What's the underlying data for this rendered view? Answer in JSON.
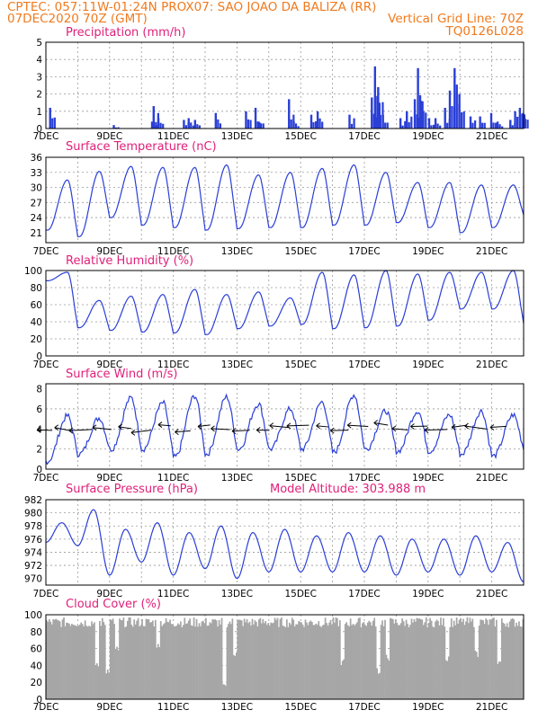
{
  "header": {
    "line1": "CPTEC:   057:11W-01:24N   PROX07: SAO JOAO DA BALIZA (RR)",
    "line2_left": "07DEC2020 70Z (GMT)",
    "line2_right": "Vertical Grid Line: 70Z",
    "code": "TQ0126L028"
  },
  "colors": {
    "header": "#f07a1e",
    "title": "#e0207a",
    "series": "#2a3fd6",
    "cloud": "#a6a6a6",
    "grid": "#9a9a9a"
  },
  "chart_data": [
    {
      "id": "precip",
      "type": "bar",
      "title": "Precipitation (mm/h)",
      "x_ticks": [
        "7DEC",
        "9DEC",
        "11DEC",
        "13DEC",
        "15DEC",
        "17DEC",
        "19DEC",
        "21DEC"
      ],
      "ylim": [
        0,
        5
      ],
      "yticks": [
        0,
        1,
        2,
        3,
        4,
        5
      ],
      "events": [
        {
          "day": 0.1,
          "value": 1.2
        },
        {
          "day": 2.1,
          "value": 0.2
        },
        {
          "day": 3.3,
          "value": 0.4
        },
        {
          "day": 3.35,
          "value": 1.3
        },
        {
          "day": 3.5,
          "value": 0.6
        },
        {
          "day": 4.3,
          "value": 0.5
        },
        {
          "day": 4.45,
          "value": 0.6
        },
        {
          "day": 4.65,
          "value": 0.5
        },
        {
          "day": 5.3,
          "value": 0.9
        },
        {
          "day": 6.25,
          "value": 1.0
        },
        {
          "day": 6.55,
          "value": 1.2
        },
        {
          "day": 6.65,
          "value": 0.4
        },
        {
          "day": 7.6,
          "value": 1.7
        },
        {
          "day": 7.75,
          "value": 0.4
        },
        {
          "day": 8.3,
          "value": 0.8
        },
        {
          "day": 8.5,
          "value": 1.0
        },
        {
          "day": 9.5,
          "value": 0.8
        },
        {
          "day": 10.2,
          "value": 1.8
        },
        {
          "day": 10.3,
          "value": 3.6
        },
        {
          "day": 10.4,
          "value": 2.4
        },
        {
          "day": 10.55,
          "value": 0.8
        },
        {
          "day": 11.1,
          "value": 0.6
        },
        {
          "day": 11.3,
          "value": 1.0
        },
        {
          "day": 11.55,
          "value": 1.7
        },
        {
          "day": 11.65,
          "value": 3.5
        },
        {
          "day": 11.75,
          "value": 1.6
        },
        {
          "day": 12.0,
          "value": 0.6
        },
        {
          "day": 12.2,
          "value": 0.6
        },
        {
          "day": 12.5,
          "value": 1.2
        },
        {
          "day": 12.65,
          "value": 2.2
        },
        {
          "day": 12.8,
          "value": 3.5
        },
        {
          "day": 12.95,
          "value": 2.0
        },
        {
          "day": 13.3,
          "value": 0.7
        },
        {
          "day": 13.6,
          "value": 0.7
        },
        {
          "day": 13.95,
          "value": 0.9
        },
        {
          "day": 14.15,
          "value": 0.4
        },
        {
          "day": 14.55,
          "value": 0.5
        },
        {
          "day": 14.7,
          "value": 1.0
        },
        {
          "day": 14.85,
          "value": 1.2
        },
        {
          "day": 14.95,
          "value": 0.9
        }
      ]
    },
    {
      "id": "temp",
      "type": "line",
      "title": "Surface Temperature (nC)",
      "x_ticks": [
        "7DEC",
        "9DEC",
        "11DEC",
        "13DEC",
        "15DEC",
        "17DEC",
        "19DEC",
        "21DEC"
      ],
      "ylim": [
        19,
        36
      ],
      "yticks": [
        21,
        24,
        27,
        30,
        33,
        36
      ],
      "daily_min": [
        21.5,
        20.2,
        24.0,
        22.5,
        22.0,
        21.5,
        21.8,
        22.0,
        22.0,
        22.5,
        22.5,
        23.0,
        22.0,
        21.0,
        22.0,
        24.5
      ],
      "daily_max": [
        31.5,
        33.2,
        34.2,
        34.0,
        34.0,
        34.5,
        32.5,
        33.0,
        33.8,
        34.5,
        33.0,
        31.0,
        31.0,
        30.5,
        30.5,
        32.3
      ]
    },
    {
      "id": "rh",
      "type": "line",
      "title": "Relative Humidity (%)",
      "x_ticks": [
        "7DEC",
        "9DEC",
        "11DEC",
        "13DEC",
        "15DEC",
        "17DEC",
        "19DEC",
        "21DEC"
      ],
      "ylim": [
        0,
        100
      ],
      "yticks": [
        0,
        20,
        40,
        60,
        80,
        100
      ],
      "daily_min": [
        null,
        33,
        30,
        28,
        27,
        25,
        32,
        35,
        37,
        32,
        33,
        35,
        42,
        55,
        55,
        38
      ],
      "daily_max": [
        98,
        65,
        70,
        72,
        78,
        72,
        75,
        68,
        98,
        95,
        100,
        96,
        98,
        98,
        100,
        65
      ]
    },
    {
      "id": "wind",
      "type": "line",
      "title": "Surface Wind (m/s)",
      "x_ticks": [
        "7DEC",
        "9DEC",
        "11DEC",
        "13DEC",
        "15DEC",
        "17DEC",
        "19DEC",
        "21DEC"
      ],
      "ylim": [
        0,
        8.5
      ],
      "yticks": [
        0,
        2,
        4,
        6,
        8
      ],
      "daily_min": [
        0.8,
        1.5,
        2.0,
        2.0,
        1.2,
        1.5,
        2.0,
        2.0,
        2.0,
        1.7,
        2.0,
        1.8,
        1.8,
        1.5,
        1.3,
        2.0
      ],
      "daily_max": [
        5.3,
        5.1,
        7.1,
        6.6,
        7.3,
        7.2,
        6.5,
        6.0,
        6.7,
        7.4,
        5.8,
        5.8,
        5.4,
        5.8,
        5.4,
        5.5
      ]
    },
    {
      "id": "pres",
      "type": "line",
      "title": "Surface Pressure (hPa)",
      "annotation": "Model Altitude: 303.988 m",
      "x_ticks": [
        "7DEC",
        "9DEC",
        "11DEC",
        "13DEC",
        "15DEC",
        "17DEC",
        "19DEC",
        "21DEC"
      ],
      "ylim": [
        969,
        982
      ],
      "yticks": [
        970,
        972,
        974,
        976,
        978,
        980,
        982
      ],
      "half_day_extremes": [
        975.5,
        978.5,
        975,
        980.5,
        970.5,
        977.5,
        972.5,
        978.5,
        970.5,
        977,
        971.5,
        978,
        970,
        977,
        971,
        977.5,
        971,
        976.5,
        971,
        977,
        971,
        976.5,
        970.5,
        976,
        971,
        976,
        970.5,
        976.5,
        971,
        975.5,
        969.5
      ]
    },
    {
      "id": "cloud",
      "type": "bar",
      "title": "Cloud Cover (%)",
      "x_ticks": [
        "7DEC",
        "9DEC",
        "11DEC",
        "13DEC",
        "15DEC",
        "17DEC",
        "19DEC",
        "21DEC"
      ],
      "ylim": [
        0,
        100
      ],
      "yticks": [
        0,
        20,
        40,
        60,
        80,
        100
      ],
      "typical_range": [
        85,
        97
      ],
      "dips": [
        {
          "day": 1.6,
          "value": 35
        },
        {
          "day": 1.9,
          "value": 30
        },
        {
          "day": 2.2,
          "value": 55
        },
        {
          "day": 3.5,
          "value": 60
        },
        {
          "day": 5.6,
          "value": 10
        },
        {
          "day": 5.9,
          "value": 50
        },
        {
          "day": 9.3,
          "value": 40
        },
        {
          "day": 10.4,
          "value": 30
        },
        {
          "day": 10.7,
          "value": 45
        },
        {
          "day": 12.6,
          "value": 45
        },
        {
          "day": 13.5,
          "value": 50
        },
        {
          "day": 14.2,
          "value": 40
        }
      ]
    }
  ]
}
